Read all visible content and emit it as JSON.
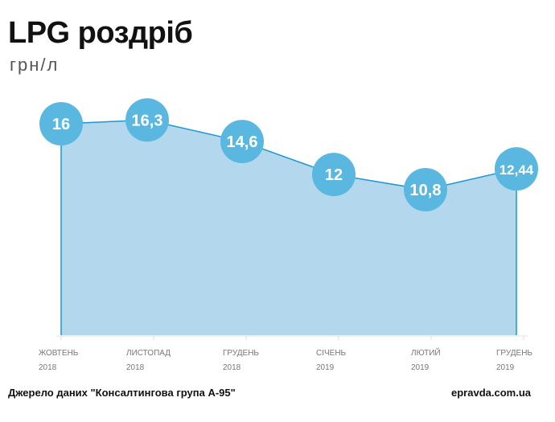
{
  "chart_data": {
    "type": "area",
    "title": "LPG роздріб",
    "subtitle": "грн/л",
    "categories": [
      {
        "month": "ЖОВТЕНЬ",
        "year": "2018"
      },
      {
        "month": "ЛИСТОПАД",
        "year": "2018"
      },
      {
        "month": "ГРУДЕНЬ",
        "year": "2018"
      },
      {
        "month": "СІЧЕНЬ",
        "year": "2019"
      },
      {
        "month": "ЛЮТИЙ",
        "year": "2019"
      },
      {
        "month": "ГРУДЕНЬ",
        "year": "2019"
      }
    ],
    "values": [
      16,
      16.3,
      14.6,
      12,
      10.8,
      12.44
    ],
    "labels": [
      "16",
      "16,3",
      "14,6",
      "12",
      "10,8",
      "12,44"
    ],
    "colors": {
      "fill": "#b3d8ee",
      "line": "#1d96cf",
      "marker": "#5ab8e0"
    }
  },
  "footer": {
    "source": "Джерело даних \"Консалтингова група А-95\"",
    "site": "epravda.com.ua"
  }
}
